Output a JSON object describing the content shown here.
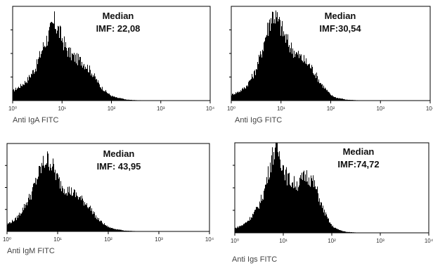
{
  "chart_data": [
    {
      "type": "area",
      "xscale": "log",
      "xlim": [
        1,
        10000
      ],
      "x_ticks": [
        "10⁰",
        "10¹",
        "10²",
        "10³",
        "10⁴"
      ],
      "xlabel": "Anti IgA FITC",
      "annotation": [
        "Median",
        "IMF: 22,08"
      ],
      "ylim": [
        0,
        1
      ],
      "series": [
        {
          "x": [
            1,
            1.5,
            2,
            3,
            4,
            5,
            6,
            7,
            8,
            10,
            12,
            15,
            20,
            25,
            30,
            40,
            50,
            60,
            80,
            100,
            130,
            170,
            200,
            300,
            500,
            1000,
            10000
          ],
          "values": [
            0.1,
            0.16,
            0.22,
            0.36,
            0.55,
            0.66,
            0.75,
            0.83,
            0.78,
            0.66,
            0.56,
            0.49,
            0.44,
            0.42,
            0.38,
            0.3,
            0.22,
            0.15,
            0.09,
            0.05,
            0.03,
            0.02,
            0.01,
            0.005,
            0.002,
            0,
            0
          ]
        }
      ]
    },
    {
      "type": "area",
      "xscale": "log",
      "xlim": [
        1,
        10000
      ],
      "x_ticks": [
        "10⁰",
        "10¹",
        "10²",
        "10³",
        "10⁴"
      ],
      "xlabel": "Anti IgG FITC",
      "annotation": [
        "Median",
        "IMF:30,54"
      ],
      "ylim": [
        0,
        1
      ],
      "series": [
        {
          "x": [
            1,
            1.5,
            2,
            3,
            4,
            5,
            6,
            7,
            8,
            10,
            12,
            15,
            20,
            25,
            30,
            40,
            50,
            60,
            80,
            100,
            130,
            170,
            200,
            300,
            500,
            1000,
            10000
          ],
          "values": [
            0.06,
            0.1,
            0.15,
            0.3,
            0.5,
            0.7,
            0.85,
            0.92,
            0.88,
            0.78,
            0.68,
            0.58,
            0.5,
            0.46,
            0.42,
            0.36,
            0.28,
            0.2,
            0.12,
            0.06,
            0.03,
            0.02,
            0.01,
            0.005,
            0,
            0,
            0
          ]
        }
      ]
    },
    {
      "type": "area",
      "xscale": "log",
      "xlim": [
        1,
        10000
      ],
      "x_ticks": [
        "10⁰",
        "10¹",
        "10²",
        "10³",
        "10⁴"
      ],
      "xlabel": "Anti IgM FITC",
      "annotation": [
        "Median",
        "IMF: 43,95"
      ],
      "ylim": [
        0,
        1
      ],
      "series": [
        {
          "x": [
            1,
            1.5,
            2,
            3,
            4,
            5,
            6,
            7,
            8,
            10,
            12,
            15,
            20,
            25,
            30,
            40,
            50,
            60,
            80,
            100,
            130,
            170,
            200,
            300,
            500,
            1000,
            10000
          ],
          "values": [
            0.08,
            0.14,
            0.24,
            0.42,
            0.62,
            0.75,
            0.82,
            0.8,
            0.74,
            0.6,
            0.52,
            0.48,
            0.44,
            0.4,
            0.36,
            0.3,
            0.22,
            0.15,
            0.09,
            0.05,
            0.03,
            0.02,
            0.01,
            0.005,
            0,
            0,
            0
          ]
        }
      ]
    },
    {
      "type": "area",
      "xscale": "log",
      "xlim": [
        1,
        10000
      ],
      "x_ticks": [
        "10⁰",
        "10¹",
        "10²",
        "10³",
        "10⁴"
      ],
      "xlabel": "Anti Igs FITC",
      "annotation": [
        "Median",
        "IMF:74,72"
      ],
      "ylim": [
        0,
        1
      ],
      "series": [
        {
          "x": [
            1,
            1.5,
            2,
            3,
            4,
            5,
            6,
            7,
            8,
            10,
            12,
            15,
            20,
            25,
            30,
            40,
            50,
            60,
            80,
            100,
            130,
            170,
            200,
            300,
            500,
            1000,
            10000
          ],
          "values": [
            0.05,
            0.09,
            0.15,
            0.28,
            0.45,
            0.68,
            0.86,
            0.95,
            0.9,
            0.74,
            0.62,
            0.56,
            0.54,
            0.6,
            0.64,
            0.58,
            0.46,
            0.32,
            0.17,
            0.08,
            0.04,
            0.02,
            0.01,
            0.005,
            0,
            0,
            0
          ]
        }
      ]
    }
  ]
}
